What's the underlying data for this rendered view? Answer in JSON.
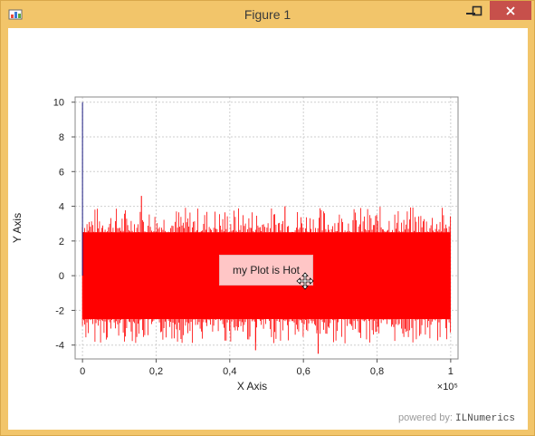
{
  "window": {
    "title": "Figure 1",
    "icons": {
      "app": "figure-app-icon",
      "minimize": "minimize-icon",
      "maximize": "maximize-icon",
      "close": "close-icon"
    }
  },
  "annotation": {
    "text": "my Plot is Hot",
    "cursor": "move-cursor-icon"
  },
  "powered": {
    "prefix": "powered by:",
    "brand": "ILNumerics"
  },
  "colors": {
    "series": "#ff0000",
    "start_line": "#1a1a80",
    "annotation_bg": "#ffdcdc"
  },
  "chart_data": {
    "type": "line",
    "xlabel": "X Axis",
    "ylabel": "Y Axis",
    "x_exponent_label": "×10⁵",
    "xlim": [
      -0.02,
      1.02
    ],
    "ylim": [
      -4.8,
      10.3
    ],
    "xticks": [
      "0",
      "0,2",
      "0,4",
      "0,6",
      "0,8",
      "1"
    ],
    "xtick_values": [
      0,
      0.2,
      0.4,
      0.6,
      0.8,
      1.0
    ],
    "yticks": [
      "-4",
      "-2",
      "0",
      "2",
      "4",
      "6",
      "8",
      "10"
    ],
    "ytick_values": [
      -4,
      -2,
      0,
      2,
      4,
      6,
      8,
      10
    ],
    "grid": true,
    "series": [
      {
        "color": "#ff0000",
        "x_range": [
          0,
          1.0
        ],
        "envelope_min": -4.5,
        "envelope_max": 4.6,
        "typical_band": [
          -2.5,
          2.5
        ],
        "notable_spikes": [
          {
            "x": 0.16,
            "y": 4.6
          },
          {
            "x": 0.55,
            "y": 4.0
          },
          {
            "x": 0.47,
            "y": -4.3
          },
          {
            "x": 0.64,
            "y": -4.5
          }
        ]
      },
      {
        "color": "#1a1a80",
        "x": [
          0,
          0
        ],
        "values": [
          10,
          0
        ]
      }
    ]
  }
}
